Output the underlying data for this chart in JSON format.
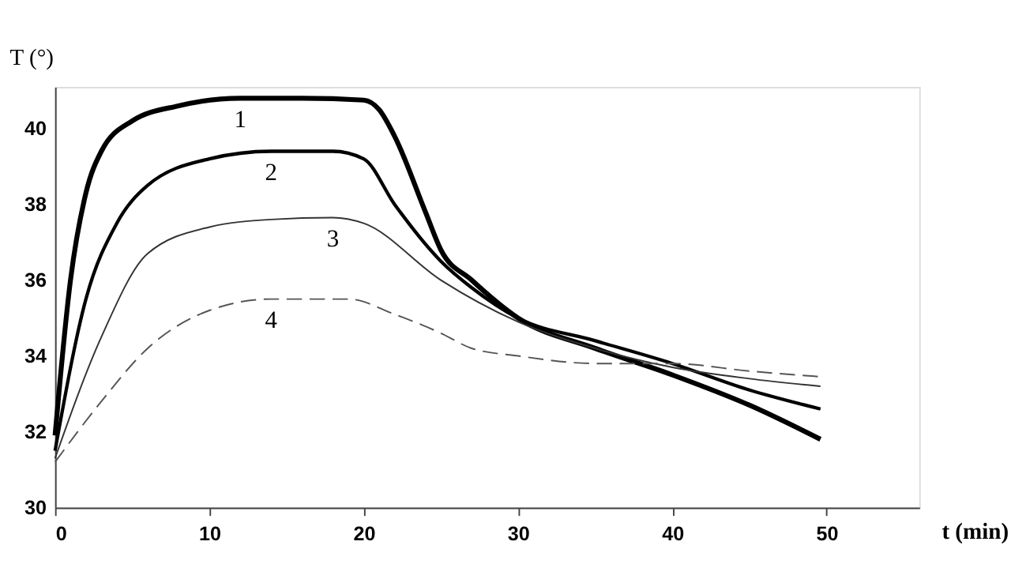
{
  "chart_data": {
    "type": "line",
    "xlabel": "t (min)",
    "ylabel": "T (°)",
    "xlim": [
      0,
      56
    ],
    "xticks": [
      0,
      10,
      20,
      30,
      40,
      50
    ],
    "ylim": [
      30,
      41.1
    ],
    "yticks": [
      30,
      32,
      34,
      36,
      38,
      40
    ],
    "grid": false,
    "legend": false,
    "marker": "none",
    "series": [
      {
        "name": "1",
        "color": "#000000",
        "line_style": "solid",
        "x": [
          0,
          1,
          2,
          3,
          5,
          8,
          12,
          16,
          20,
          21,
          22,
          24,
          25,
          27,
          30,
          35,
          40,
          45,
          49.6
        ],
        "values": [
          31.9,
          36,
          38.3,
          39.4,
          40.2,
          40.6,
          40.8,
          40.8,
          40.75,
          40.5,
          39.8,
          37.8,
          36.8,
          36.0,
          35.0,
          34.2,
          33.5,
          32.7,
          31.8
        ]
      },
      {
        "name": "2",
        "color": "#000000",
        "line_style": "solid",
        "x": [
          0,
          2,
          4,
          6,
          10,
          14,
          18,
          20,
          22,
          25,
          27,
          30,
          35,
          40,
          45,
          49.6
        ],
        "values": [
          31.5,
          35.5,
          37.5,
          38.5,
          39.2,
          39.4,
          39.4,
          39.2,
          38.0,
          36.5,
          35.8,
          35.0,
          34.4,
          33.8,
          33.1,
          32.6
        ]
      },
      {
        "name": "3",
        "color": "#333333",
        "line_style": "solid",
        "x": [
          0,
          3,
          6,
          10,
          14,
          18,
          20,
          25,
          30,
          35,
          40,
          45,
          49.6
        ],
        "values": [
          31.3,
          34.5,
          36.7,
          37.4,
          37.6,
          37.65,
          37.5,
          36.0,
          34.9,
          34.2,
          33.7,
          33.4,
          33.2
        ]
      },
      {
        "name": "4",
        "color": "#555555",
        "line_style": "dashed",
        "x": [
          0,
          3,
          6,
          10,
          14,
          19,
          22,
          25,
          27,
          30,
          35,
          40,
          45,
          49.6
        ],
        "values": [
          31.2,
          32.8,
          34.2,
          35.2,
          35.5,
          35.5,
          35.1,
          34.6,
          34.2,
          34.0,
          33.8,
          33.8,
          33.6,
          33.45
        ]
      }
    ]
  }
}
